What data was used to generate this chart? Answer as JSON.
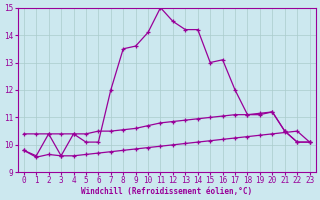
{
  "xlabel": "Windchill (Refroidissement éolien,°C)",
  "bg_color": "#cce8ef",
  "line_color": "#990099",
  "grid_color": "#aacccc",
  "xlim": [
    -0.5,
    23.5
  ],
  "ylim": [
    9,
    15
  ],
  "x_ticks": [
    0,
    1,
    2,
    3,
    4,
    5,
    6,
    7,
    8,
    9,
    10,
    11,
    12,
    13,
    14,
    15,
    16,
    17,
    18,
    19,
    20,
    21,
    22,
    23
  ],
  "y_ticks": [
    9,
    10,
    11,
    12,
    13,
    14,
    15
  ],
  "line1_x": [
    0,
    1,
    2,
    3,
    4,
    5,
    6,
    7,
    8,
    9,
    10,
    11,
    12,
    13,
    14,
    15,
    16,
    17,
    18,
    19,
    20,
    21,
    22,
    23
  ],
  "line1_y": [
    9.8,
    9.6,
    10.4,
    9.6,
    10.4,
    10.1,
    10.1,
    12.0,
    13.5,
    13.6,
    14.1,
    15.0,
    14.5,
    14.2,
    14.2,
    13.0,
    13.1,
    12.0,
    11.1,
    11.1,
    11.2,
    10.5,
    10.1,
    10.1
  ],
  "line2_x": [
    0,
    1,
    2,
    3,
    4,
    5,
    6,
    7,
    8,
    9,
    10,
    11,
    12,
    13,
    14,
    15,
    16,
    17,
    18,
    19,
    20,
    21,
    22,
    23
  ],
  "line2_y": [
    10.4,
    10.4,
    10.4,
    10.4,
    10.4,
    10.4,
    10.5,
    10.5,
    10.55,
    10.6,
    10.7,
    10.8,
    10.85,
    10.9,
    10.95,
    11.0,
    11.05,
    11.1,
    11.1,
    11.15,
    11.2,
    10.5,
    10.1,
    10.1
  ],
  "line3_x": [
    0,
    1,
    2,
    3,
    4,
    5,
    6,
    7,
    8,
    9,
    10,
    11,
    12,
    13,
    14,
    15,
    16,
    17,
    18,
    19,
    20,
    21,
    22,
    23
  ],
  "line3_y": [
    9.8,
    9.55,
    9.65,
    9.6,
    9.6,
    9.65,
    9.7,
    9.75,
    9.8,
    9.85,
    9.9,
    9.95,
    10.0,
    10.05,
    10.1,
    10.15,
    10.2,
    10.25,
    10.3,
    10.35,
    10.4,
    10.45,
    10.5,
    10.1
  ]
}
